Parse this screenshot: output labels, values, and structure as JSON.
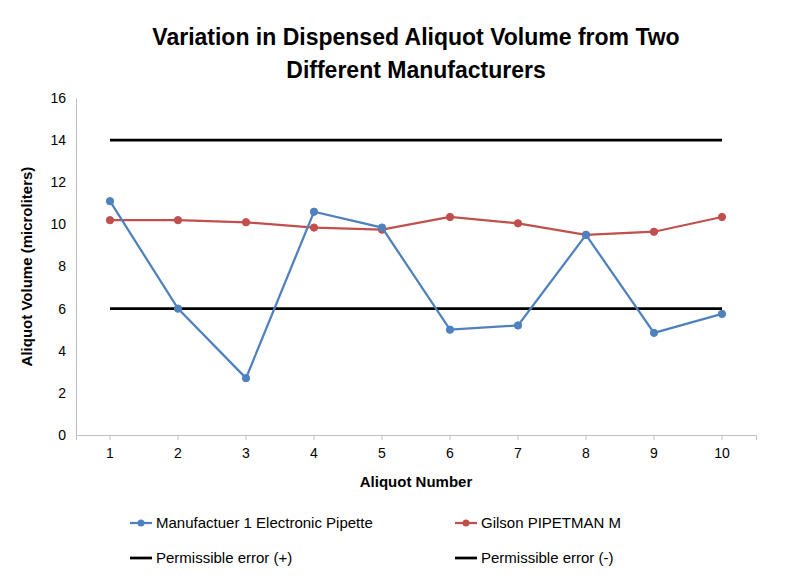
{
  "chart_data": {
    "type": "line",
    "title": "Variation in Dispensed Aliquot Volume from Two Different Manufacturers",
    "x_label": "Aliquot Number",
    "y_label": "Aliquot Volume (microliters)",
    "categories": [
      "1",
      "2",
      "3",
      "4",
      "5",
      "6",
      "7",
      "8",
      "9",
      "10"
    ],
    "series": [
      {
        "name": "Manufactuer 1 Electronic Pipette",
        "color": "#4f81bd",
        "marker": "circle",
        "line_style": "solid",
        "values": [
          11.1,
          6.0,
          2.7,
          10.6,
          9.85,
          5.0,
          5.2,
          9.5,
          4.85,
          5.75
        ]
      },
      {
        "name": "Gilson PIPETMAN M",
        "color": "#c0504d",
        "marker": "circle",
        "line_style": "solid",
        "values": [
          10.2,
          10.2,
          10.1,
          9.85,
          9.75,
          10.35,
          10.05,
          9.5,
          9.65,
          10.35
        ]
      },
      {
        "name": "Permissible error (+)",
        "color": "#000000",
        "marker": "none",
        "line_style": "solid",
        "values": [
          14,
          14,
          14,
          14,
          14,
          14,
          14,
          14,
          14,
          14
        ]
      },
      {
        "name": "Permissible error (-)",
        "color": "#000000",
        "marker": "none",
        "line_style": "solid",
        "values": [
          6,
          6,
          6,
          6,
          6,
          6,
          6,
          6,
          6,
          6
        ]
      }
    ],
    "ylim": [
      0,
      16
    ],
    "yticks": [
      0,
      2,
      4,
      6,
      8,
      10,
      12,
      14,
      16
    ],
    "grid": false,
    "legend": "bottom"
  }
}
